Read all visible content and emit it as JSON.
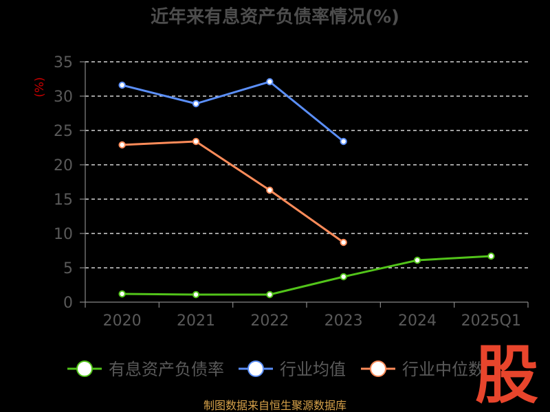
{
  "chart_data": {
    "type": "line",
    "title": "近年来有息资产负债率情况(%)",
    "ylabel": "(%)",
    "xlabel": "",
    "categories": [
      "2020",
      "2021",
      "2022",
      "2023",
      "2024",
      "2025Q1"
    ],
    "ylim": [
      0,
      35
    ],
    "yticks": [
      0,
      5,
      10,
      15,
      20,
      25,
      30,
      35
    ],
    "grid": true,
    "legend_position": "bottom",
    "series": [
      {
        "name": "有息资产负债率",
        "color": "#52c41a",
        "values": [
          1.2,
          1.1,
          1.1,
          3.7,
          6.1,
          6.7
        ]
      },
      {
        "name": "行业均值",
        "color": "#5b8ff9",
        "values": [
          31.6,
          28.9,
          32.1,
          23.4,
          null,
          null
        ]
      },
      {
        "name": "行业中位数",
        "color": "#ff8c5a",
        "values": [
          22.9,
          23.4,
          16.3,
          8.7,
          null,
          null
        ]
      }
    ]
  },
  "source_text": "制图数据来自恒生聚源数据库",
  "watermark": "股",
  "colors": {
    "background": "#000000",
    "axis": "#888888",
    "grid": "#ffffff",
    "tick_label": "#5a5a5a",
    "title": "#4d4d4d",
    "ylabel": "#cc0000",
    "source": "#d7a24a",
    "watermark": "#e8452c"
  }
}
